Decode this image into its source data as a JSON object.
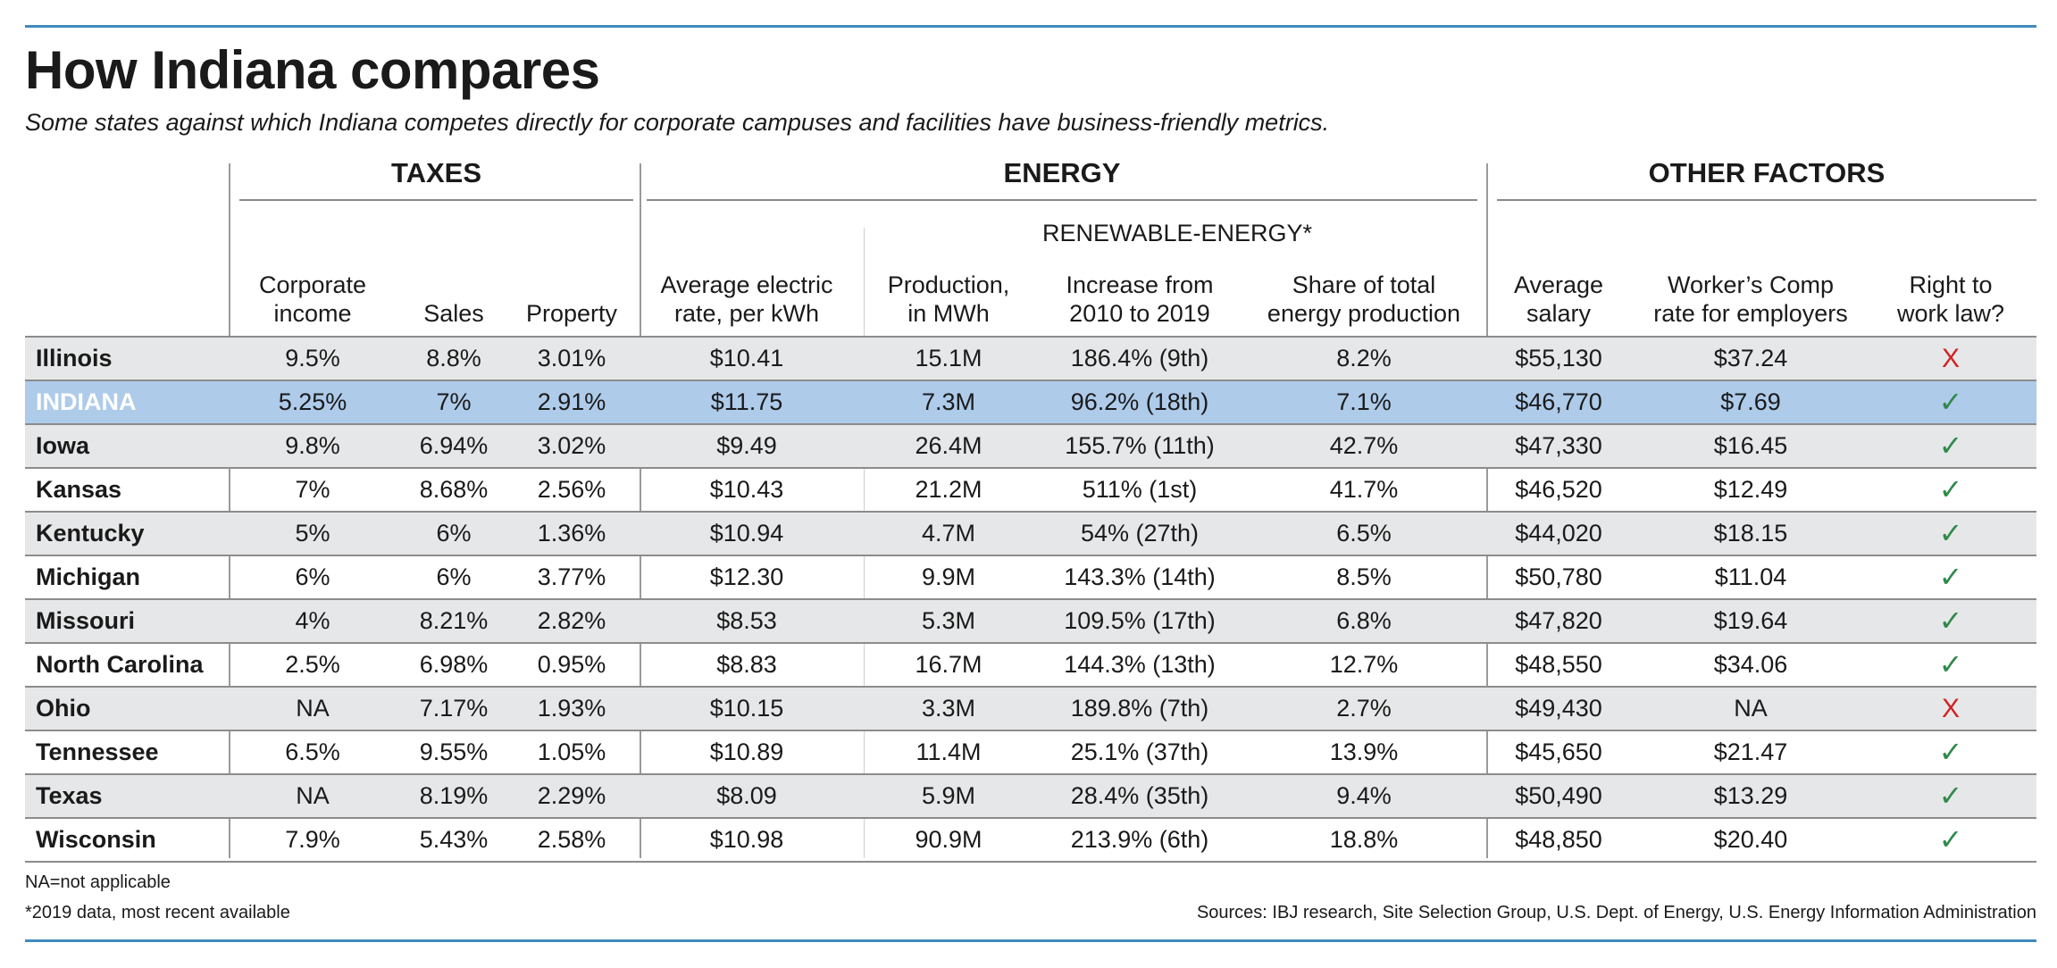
{
  "title": "How Indiana compares",
  "subtitle": "Some states against which Indiana competes directly for corporate campuses and facilities have business-friendly metrics.",
  "groups": {
    "taxes": "TAXES",
    "energy": "ENERGY",
    "other": "OTHER FACTORS",
    "renewable": "RENEWABLE-ENERGY*"
  },
  "columns": [
    {
      "key": "corp",
      "label_lines": [
        "Corporate",
        "income"
      ]
    },
    {
      "key": "sales",
      "label_lines": [
        "Sales"
      ]
    },
    {
      "key": "property",
      "label_lines": [
        "Property"
      ]
    },
    {
      "key": "rate",
      "label_lines": [
        "Average electric",
        "rate, per kWh"
      ]
    },
    {
      "key": "production",
      "label_lines": [
        "Production,",
        "in MWh"
      ]
    },
    {
      "key": "increase",
      "label_lines": [
        "Increase from",
        "2010 to 2019"
      ]
    },
    {
      "key": "share",
      "label_lines": [
        "Share of total",
        "energy production"
      ]
    },
    {
      "key": "salary",
      "label_lines": [
        "Average",
        "salary"
      ]
    },
    {
      "key": "comp",
      "label_lines": [
        "Worker’s Comp",
        "rate for employers"
      ]
    },
    {
      "key": "rtw",
      "label_lines": [
        "Right to",
        "work law?"
      ]
    }
  ],
  "rows": [
    {
      "state": "Illinois",
      "corp": "9.5%",
      "sales": "8.8%",
      "property": "3.01%",
      "rate": "$10.41",
      "production": "15.1M",
      "increase": "186.4% (9th)",
      "share": "8.2%",
      "salary": "$55,130",
      "comp": "$37.24",
      "rtw": "X",
      "rtw_type": "x",
      "style": "shaded"
    },
    {
      "state": "INDIANA",
      "corp": "5.25%",
      "sales": "7%",
      "property": "2.91%",
      "rate": "$11.75",
      "production": "7.3M",
      "increase": "96.2% (18th)",
      "share": "7.1%",
      "salary": "$46,770",
      "comp": "$7.69",
      "rtw": "✓",
      "rtw_type": "check",
      "style": "hl"
    },
    {
      "state": "Iowa",
      "corp": "9.8%",
      "sales": "6.94%",
      "property": "3.02%",
      "rate": "$9.49",
      "production": "26.4M",
      "increase": "155.7% (11th)",
      "share": "42.7%",
      "salary": "$47,330",
      "comp": "$16.45",
      "rtw": "✓",
      "rtw_type": "check",
      "style": "shaded"
    },
    {
      "state": "Kansas",
      "corp": "7%",
      "sales": "8.68%",
      "property": "2.56%",
      "rate": "$10.43",
      "production": "21.2M",
      "increase": "511% (1st)",
      "share": "41.7%",
      "salary": "$46,520",
      "comp": "$12.49",
      "rtw": "✓",
      "rtw_type": "check",
      "style": "plain"
    },
    {
      "state": "Kentucky",
      "corp": "5%",
      "sales": "6%",
      "property": "1.36%",
      "rate": "$10.94",
      "production": "4.7M",
      "increase": "54% (27th)",
      "share": "6.5%",
      "salary": "$44,020",
      "comp": "$18.15",
      "rtw": "✓",
      "rtw_type": "check",
      "style": "shaded"
    },
    {
      "state": "Michigan",
      "corp": "6%",
      "sales": "6%",
      "property": "3.77%",
      "rate": "$12.30",
      "production": "9.9M",
      "increase": "143.3% (14th)",
      "share": "8.5%",
      "salary": "$50,780",
      "comp": "$11.04",
      "rtw": "✓",
      "rtw_type": "check",
      "style": "plain"
    },
    {
      "state": "Missouri",
      "corp": "4%",
      "sales": "8.21%",
      "property": "2.82%",
      "rate": "$8.53",
      "production": "5.3M",
      "increase": "109.5%  (17th)",
      "share": "6.8%",
      "salary": "$47,820",
      "comp": "$19.64",
      "rtw": "✓",
      "rtw_type": "check",
      "style": "shaded"
    },
    {
      "state": "North Carolina",
      "corp": "2.5%",
      "sales": "6.98%",
      "property": "0.95%",
      "rate": "$8.83",
      "production": "16.7M",
      "increase": "144.3% (13th)",
      "share": "12.7%",
      "salary": "$48,550",
      "comp": "$34.06",
      "rtw": "✓",
      "rtw_type": "check",
      "style": "plain"
    },
    {
      "state": "Ohio",
      "corp": "NA",
      "sales": "7.17%",
      "property": "1.93%",
      "rate": "$10.15",
      "production": "3.3M",
      "increase": "189.8% (7th)",
      "share": "2.7%",
      "salary": "$49,430",
      "comp": "NA",
      "rtw": "X",
      "rtw_type": "x",
      "style": "shaded"
    },
    {
      "state": "Tennessee",
      "corp": "6.5%",
      "sales": "9.55%",
      "property": "1.05%",
      "rate": "$10.89",
      "production": "11.4M",
      "increase": "25.1% (37th)",
      "share": "13.9%",
      "salary": "$45,650",
      "comp": "$21.47",
      "rtw": "✓",
      "rtw_type": "check",
      "style": "plain"
    },
    {
      "state": "Texas",
      "corp": "NA",
      "sales": "8.19%",
      "property": "2.29%",
      "rate": "$8.09",
      "production": "5.9M",
      "increase": "28.4% (35th)",
      "share": "9.4%",
      "salary": "$50,490",
      "comp": "$13.29",
      "rtw": "✓",
      "rtw_type": "check",
      "style": "shaded"
    },
    {
      "state": "Wisconsin",
      "corp": "7.9%",
      "sales": "5.43%",
      "property": "2.58%",
      "rate": "$10.98",
      "production": "90.9M",
      "increase": "213.9% (6th)",
      "share": "18.8%",
      "salary": "$48,850",
      "comp": "$20.40",
      "rtw": "✓",
      "rtw_type": "check",
      "style": "plain"
    }
  ],
  "notes": {
    "na": "NA=not applicable",
    "data": "*2019 data, most recent available",
    "sources": "Sources: IBJ research, Site Selection Group, U.S. Dept. of Energy, U.S. Energy Information Administration"
  },
  "colors": {
    "rule": "#3f8bbf",
    "shade": "#e6e7e8",
    "highlight": "#aecbea",
    "x_mark": "#d32020",
    "check_mark": "#2f8a4a"
  }
}
